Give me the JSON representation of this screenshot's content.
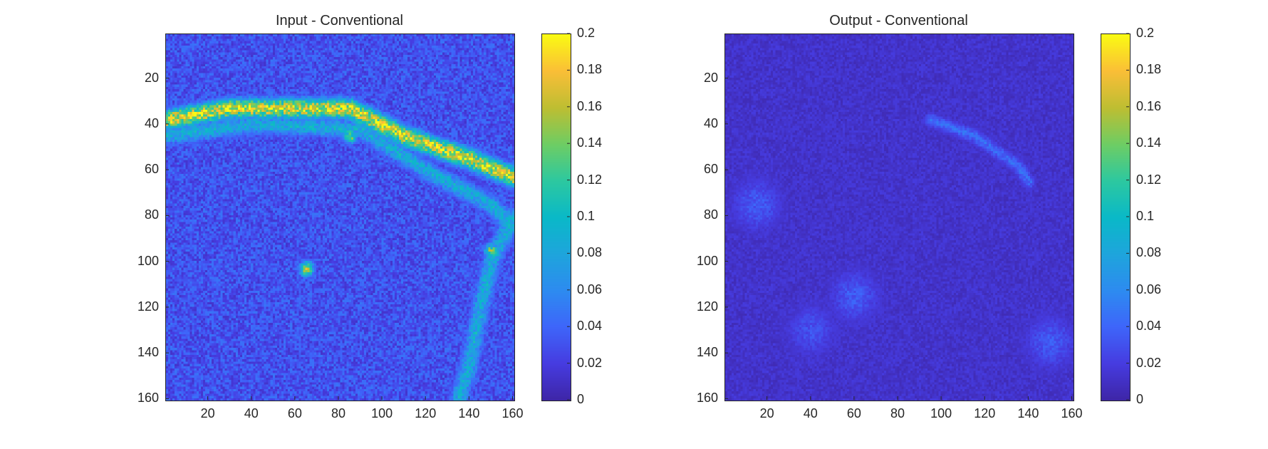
{
  "chart_data": [
    {
      "type": "heatmap",
      "title": "Input - Conventional",
      "xlabel": "",
      "ylabel": "",
      "xlim": [
        1,
        160
      ],
      "ylim": [
        1,
        160
      ],
      "y_direction": "reverse",
      "xticks": [
        20,
        40,
        60,
        80,
        100,
        120,
        140,
        160
      ],
      "yticks": [
        20,
        40,
        60,
        80,
        100,
        120,
        140,
        160
      ],
      "colormap": "parula",
      "clim": [
        0,
        0.2
      ],
      "colorbar_ticks": [
        "0",
        "0.02",
        "0.04",
        "0.06",
        "0.08",
        "0.1",
        "0.12",
        "0.14",
        "0.16",
        "0.18",
        "0.2"
      ],
      "description": "noisy MRI-like intensity map with bright yellow curved band from (0,38) to (160,63) and bright vertical curved structures near right edge",
      "features": [
        {
          "kind": "band",
          "points": [
            [
              0,
              38
            ],
            [
              30,
              33
            ],
            [
              85,
              33
            ],
            [
              110,
              45
            ],
            [
              140,
              55
            ],
            [
              160,
              63
            ]
          ],
          "value": 0.2
        },
        {
          "kind": "band",
          "points": [
            [
              0,
              45
            ],
            [
              40,
              40
            ],
            [
              90,
              42
            ],
            [
              120,
              60
            ],
            [
              150,
              75
            ],
            [
              160,
              85
            ]
          ],
          "value": 0.1
        },
        {
          "kind": "band",
          "points": [
            [
              160,
              80
            ],
            [
              150,
              100
            ],
            [
              145,
              120
            ],
            [
              140,
              145
            ],
            [
              135,
              160
            ]
          ],
          "value": 0.1
        },
        {
          "kind": "blob",
          "center": [
            65,
            103
          ],
          "value": 0.18
        },
        {
          "kind": "blob",
          "center": [
            150,
            95
          ],
          "value": 0.16
        },
        {
          "kind": "blob",
          "center": [
            85,
            45
          ],
          "value": 0.16
        }
      ],
      "background_level": 0.03
    },
    {
      "type": "heatmap",
      "title": "Output - Conventional",
      "xlabel": "",
      "ylabel": "",
      "xlim": [
        1,
        160
      ],
      "ylim": [
        1,
        160
      ],
      "y_direction": "reverse",
      "xticks": [
        20,
        40,
        60,
        80,
        100,
        120,
        140,
        160
      ],
      "yticks": [
        20,
        40,
        60,
        80,
        100,
        120,
        140,
        160
      ],
      "colormap": "parula",
      "clim": [
        0,
        0.2
      ],
      "colorbar_ticks": [
        "0",
        "0.02",
        "0.04",
        "0.06",
        "0.08",
        "0.1",
        "0.12",
        "0.14",
        "0.16",
        "0.18",
        "0.2"
      ],
      "description": "low-intensity noisy map, mostly dark blue with faint lighter structures",
      "features": [
        {
          "kind": "band",
          "points": [
            [
              95,
              38
            ],
            [
              115,
              45
            ],
            [
              135,
              58
            ],
            [
              140,
              65
            ]
          ],
          "value": 0.05
        },
        {
          "kind": "blob",
          "center": [
            15,
            75
          ],
          "value": 0.04
        },
        {
          "kind": "blob",
          "center": [
            60,
            115
          ],
          "value": 0.04
        },
        {
          "kind": "blob",
          "center": [
            40,
            130
          ],
          "value": 0.035
        },
        {
          "kind": "blob",
          "center": [
            150,
            135
          ],
          "value": 0.04
        }
      ],
      "background_level": 0.012
    }
  ]
}
